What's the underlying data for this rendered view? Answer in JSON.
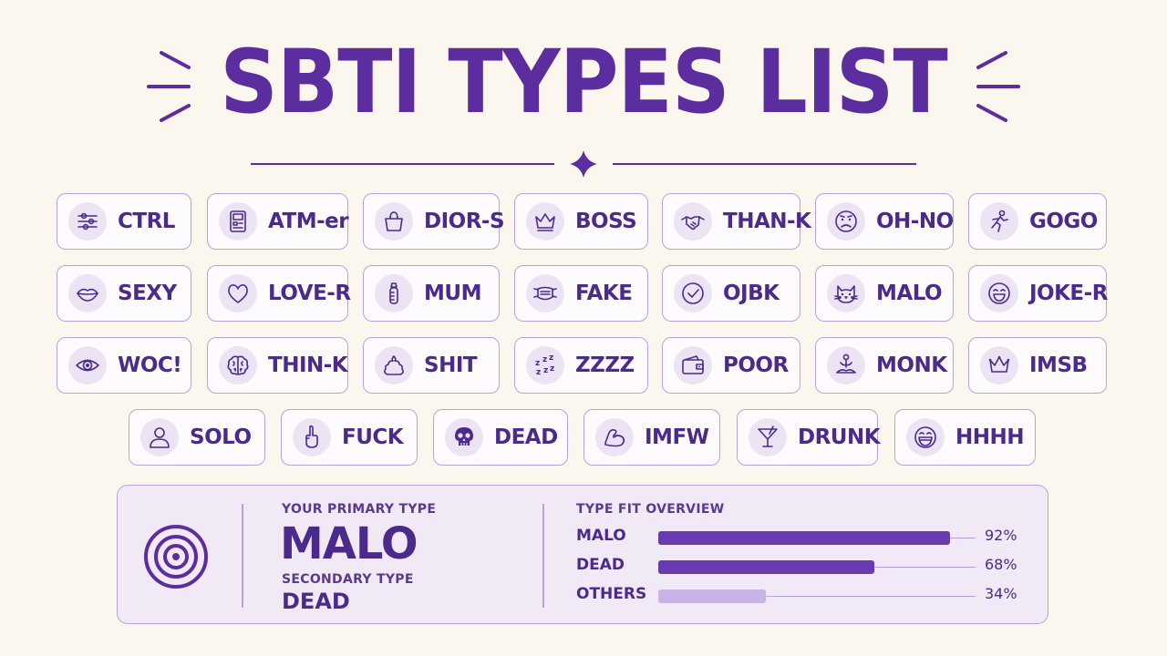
{
  "title": "SBTI TYPES LIST",
  "colors": {
    "primary": "#5b2d9f",
    "bar_primary": "#6a3ab2",
    "bar_light": "#c9b3e6",
    "background": "#fbf7ee"
  },
  "types_rows": [
    [
      {
        "label": "CTRL",
        "icon": "sliders-icon"
      },
      {
        "label": "ATM-er",
        "icon": "atm-icon"
      },
      {
        "label": "DIOR-S",
        "icon": "handbag-icon"
      },
      {
        "label": "BOSS",
        "icon": "crown-icon"
      },
      {
        "label": "THAN-K",
        "icon": "handshake-icon"
      },
      {
        "label": "OH-NO",
        "icon": "worried-face-icon"
      },
      {
        "label": "GOGO",
        "icon": "runner-icon"
      }
    ],
    [
      {
        "label": "SEXY",
        "icon": "lips-icon"
      },
      {
        "label": "LOVE-R",
        "icon": "heart-icon"
      },
      {
        "label": "MUM",
        "icon": "baby-bottle-icon"
      },
      {
        "label": "FAKE",
        "icon": "face-mask-icon"
      },
      {
        "label": "OJBK",
        "icon": "check-circle-icon"
      },
      {
        "label": "MALO",
        "icon": "cat-icon"
      },
      {
        "label": "JOKE-R",
        "icon": "laughing-face-icon"
      }
    ],
    [
      {
        "label": "WOC!",
        "icon": "eye-icon"
      },
      {
        "label": "THIN-K",
        "icon": "brain-icon"
      },
      {
        "label": "SHIT",
        "icon": "poop-icon"
      },
      {
        "label": "ZZZZ",
        "icon": "sleep-zzz-icon"
      },
      {
        "label": "POOR",
        "icon": "wallet-icon"
      },
      {
        "label": "MONK",
        "icon": "meditation-icon"
      },
      {
        "label": "IMSB",
        "icon": "crown-outline-icon"
      }
    ],
    [
      {
        "label": "SOLO",
        "icon": "person-icon"
      },
      {
        "label": "FUCK",
        "icon": "middle-finger-icon"
      },
      {
        "label": "DEAD",
        "icon": "skull-icon"
      },
      {
        "label": "IMFW",
        "icon": "flexed-arm-icon"
      },
      {
        "label": "DRUNK",
        "icon": "cocktail-icon"
      },
      {
        "label": "HHHH",
        "icon": "grinning-face-icon"
      }
    ]
  ],
  "result": {
    "primary_label": "YOUR PRIMARY TYPE",
    "primary_value": "MALO",
    "secondary_label": "SECONDARY TYPE",
    "secondary_value": "DEAD",
    "icon": "target-icon"
  },
  "fit": {
    "title": "TYPE FIT OVERVIEW",
    "items": [
      {
        "name": "MALO",
        "value": 92,
        "pct": "92%",
        "tone": "dark"
      },
      {
        "name": "DEAD",
        "value": 68,
        "pct": "68%",
        "tone": "dark"
      },
      {
        "name": "OTHERS",
        "value": 34,
        "pct": "34%",
        "tone": "light"
      }
    ]
  }
}
